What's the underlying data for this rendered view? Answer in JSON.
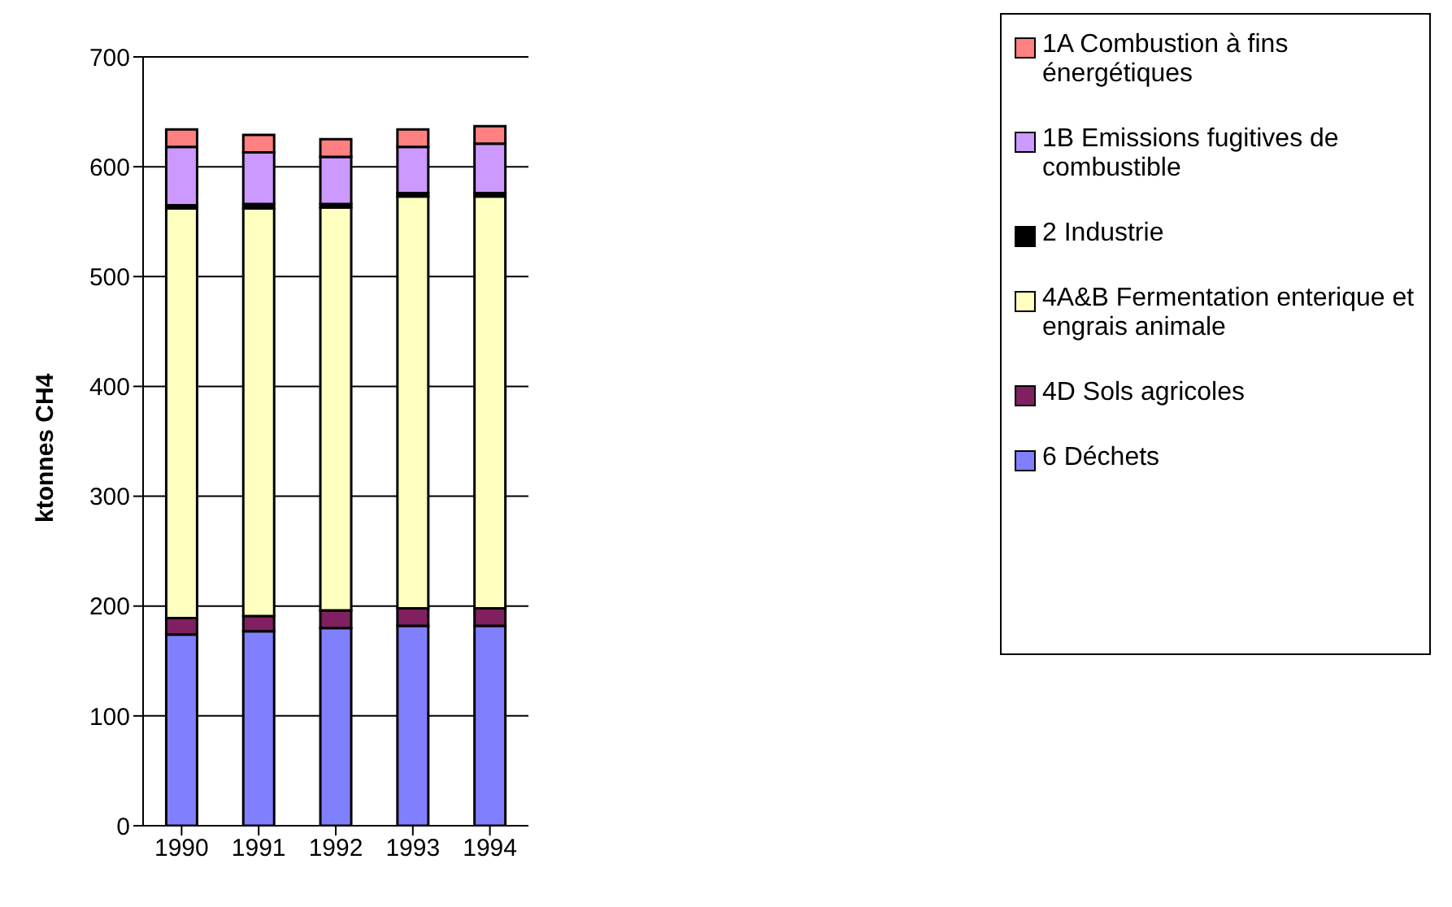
{
  "chart_data": {
    "type": "bar",
    "stacked": true,
    "ylabel": "ktonnes CH4",
    "categories": [
      "1990",
      "1991",
      "1992",
      "1993",
      "1994"
    ],
    "series": [
      {
        "name": "6 Déchets",
        "color": "#8080ff",
        "values": [
          174,
          177,
          180,
          182,
          182
        ]
      },
      {
        "name": "4D Sols agricoles",
        "color": "#802060",
        "values": [
          15,
          14,
          16,
          16,
          16
        ]
      },
      {
        "name": "4A&B Fermentation enterique et engrais animale",
        "color": "#ffffc0",
        "values": [
          373,
          371,
          367,
          375,
          375
        ]
      },
      {
        "name": "2 Industrie",
        "color": "#000000",
        "values": [
          3,
          4,
          3,
          3,
          3
        ]
      },
      {
        "name": "1B Emissions fugitives de combustible",
        "color": "#cc99ff",
        "values": [
          53,
          47,
          43,
          42,
          45
        ]
      },
      {
        "name": "1A Combustion à fins énergétiques",
        "color": "#ff8080",
        "values": [
          16,
          16,
          16,
          16,
          16
        ]
      }
    ],
    "ylim": [
      0,
      700
    ],
    "yticks": [
      0,
      100,
      200,
      300,
      400,
      500,
      600,
      700
    ],
    "grid": "y",
    "legend": "right"
  }
}
